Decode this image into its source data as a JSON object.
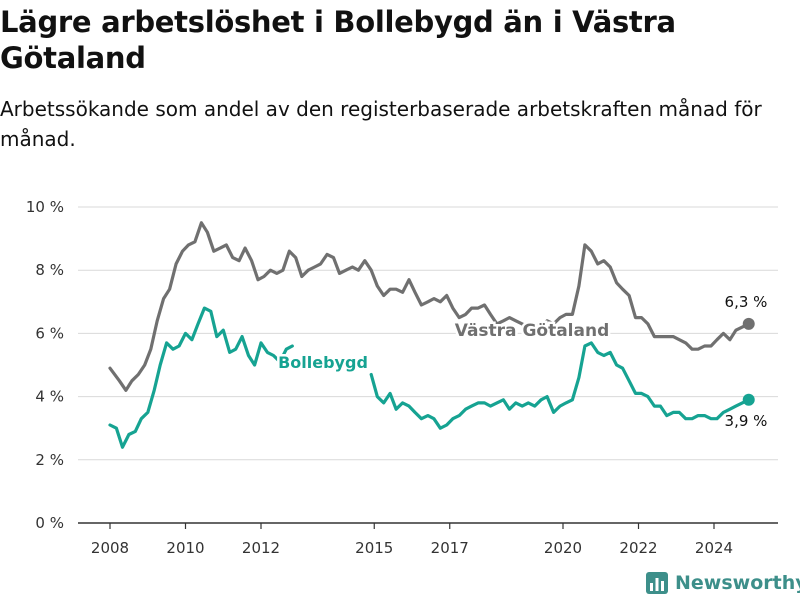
{
  "title": "Lägre arbetslöshet i Bollebygd än i Västra Götaland",
  "subtitle": "Arbetssökande som andel av den registerbaserade arbetskraften månad för månad.",
  "brand": "Newsworthy",
  "colors": {
    "bollebygd": "#16a392",
    "vastra": "#707070",
    "grid": "#d9d9d9",
    "axis": "#333333",
    "brand": "#3d8f8a"
  },
  "chart_data": {
    "type": "line",
    "x_unit": "year",
    "ylim": [
      0,
      10
    ],
    "y_ticks": [
      0,
      2,
      4,
      6,
      8,
      10
    ],
    "y_tick_labels": [
      "0 %",
      "2 %",
      "4 %",
      "6 %",
      "8 %",
      "10 %"
    ],
    "x_ticks": [
      2008,
      2010,
      2012,
      2015,
      2017,
      2020,
      2022,
      2024
    ],
    "x_tick_labels": [
      "2008",
      "2010",
      "2012",
      "2015",
      "2017",
      "2020",
      "2022",
      "2024"
    ],
    "grid": true,
    "series": [
      {
        "name": "Västra Götaland",
        "color": "#707070",
        "end_label": "6,3 %",
        "points": [
          [
            2008.0,
            4.9
          ],
          [
            2008.25,
            4.5
          ],
          [
            2008.42,
            4.2
          ],
          [
            2008.58,
            4.5
          ],
          [
            2008.75,
            4.7
          ],
          [
            2008.92,
            5.0
          ],
          [
            2009.08,
            5.5
          ],
          [
            2009.25,
            6.4
          ],
          [
            2009.42,
            7.1
          ],
          [
            2009.58,
            7.4
          ],
          [
            2009.75,
            8.2
          ],
          [
            2009.92,
            8.6
          ],
          [
            2010.08,
            8.8
          ],
          [
            2010.25,
            8.9
          ],
          [
            2010.42,
            9.5
          ],
          [
            2010.58,
            9.2
          ],
          [
            2010.75,
            8.6
          ],
          [
            2010.92,
            8.7
          ],
          [
            2011.08,
            8.8
          ],
          [
            2011.25,
            8.4
          ],
          [
            2011.42,
            8.3
          ],
          [
            2011.58,
            8.7
          ],
          [
            2011.75,
            8.3
          ],
          [
            2011.92,
            7.7
          ],
          [
            2012.08,
            7.8
          ],
          [
            2012.25,
            8.0
          ],
          [
            2012.42,
            7.9
          ],
          [
            2012.58,
            8.0
          ],
          [
            2012.75,
            8.6
          ],
          [
            2012.92,
            8.4
          ],
          [
            2013.08,
            7.8
          ],
          [
            2013.25,
            8.0
          ],
          [
            2013.42,
            8.1
          ],
          [
            2013.58,
            8.2
          ],
          [
            2013.75,
            8.5
          ],
          [
            2013.92,
            8.4
          ],
          [
            2014.08,
            7.9
          ],
          [
            2014.25,
            8.0
          ],
          [
            2014.42,
            8.1
          ],
          [
            2014.58,
            8.0
          ],
          [
            2014.75,
            8.3
          ],
          [
            2014.92,
            8.0
          ],
          [
            2015.08,
            7.5
          ],
          [
            2015.25,
            7.2
          ],
          [
            2015.42,
            7.4
          ],
          [
            2015.58,
            7.4
          ],
          [
            2015.75,
            7.3
          ],
          [
            2015.92,
            7.7
          ],
          [
            2016.08,
            7.3
          ],
          [
            2016.25,
            6.9
          ],
          [
            2016.42,
            7.0
          ],
          [
            2016.58,
            7.1
          ],
          [
            2016.75,
            7.0
          ],
          [
            2016.92,
            7.2
          ],
          [
            2017.08,
            6.8
          ],
          [
            2017.25,
            6.5
          ],
          [
            2017.42,
            6.6
          ],
          [
            2017.58,
            6.8
          ],
          [
            2017.75,
            6.8
          ],
          [
            2017.92,
            6.9
          ],
          [
            2018.08,
            6.6
          ],
          [
            2018.25,
            6.3
          ],
          [
            2018.42,
            6.4
          ],
          [
            2018.58,
            6.5
          ],
          [
            2018.75,
            6.4
          ],
          [
            2018.92,
            6.3
          ],
          [
            2019.08,
            6.2
          ],
          [
            2019.25,
            6.3
          ],
          [
            2019.42,
            6.2
          ],
          [
            2019.58,
            6.4
          ],
          [
            2019.75,
            6.3
          ],
          [
            2019.92,
            6.5
          ],
          [
            2020.08,
            6.6
          ],
          [
            2020.25,
            6.6
          ],
          [
            2020.42,
            7.5
          ],
          [
            2020.58,
            8.8
          ],
          [
            2020.75,
            8.6
          ],
          [
            2020.92,
            8.2
          ],
          [
            2021.08,
            8.3
          ],
          [
            2021.25,
            8.1
          ],
          [
            2021.42,
            7.6
          ],
          [
            2021.58,
            7.4
          ],
          [
            2021.75,
            7.2
          ],
          [
            2021.92,
            6.5
          ],
          [
            2022.08,
            6.5
          ],
          [
            2022.25,
            6.3
          ],
          [
            2022.42,
            5.9
          ],
          [
            2022.58,
            5.9
          ],
          [
            2022.75,
            5.9
          ],
          [
            2022.92,
            5.9
          ],
          [
            2023.08,
            5.8
          ],
          [
            2023.25,
            5.7
          ],
          [
            2023.42,
            5.5
          ],
          [
            2023.58,
            5.5
          ],
          [
            2023.75,
            5.6
          ],
          [
            2023.92,
            5.6
          ],
          [
            2024.08,
            5.8
          ],
          [
            2024.25,
            6.0
          ],
          [
            2024.42,
            5.8
          ],
          [
            2024.58,
            6.1
          ],
          [
            2024.75,
            6.2
          ],
          [
            2024.92,
            6.3
          ]
        ]
      },
      {
        "name": "Bollebygd",
        "color": "#16a392",
        "end_label": "3,9 %",
        "points": [
          [
            2008.0,
            3.1
          ],
          [
            2008.17,
            3.0
          ],
          [
            2008.33,
            2.4
          ],
          [
            2008.5,
            2.8
          ],
          [
            2008.67,
            2.9
          ],
          [
            2008.83,
            3.3
          ],
          [
            2009.0,
            3.5
          ],
          [
            2009.17,
            4.2
          ],
          [
            2009.33,
            5.0
          ],
          [
            2009.5,
            5.7
          ],
          [
            2009.67,
            5.5
          ],
          [
            2009.83,
            5.6
          ],
          [
            2010.0,
            6.0
          ],
          [
            2010.17,
            5.8
          ],
          [
            2010.33,
            6.3
          ],
          [
            2010.5,
            6.8
          ],
          [
            2010.67,
            6.7
          ],
          [
            2010.83,
            5.9
          ],
          [
            2011.0,
            6.1
          ],
          [
            2011.17,
            5.4
          ],
          [
            2011.33,
            5.5
          ],
          [
            2011.5,
            5.9
          ],
          [
            2011.67,
            5.3
          ],
          [
            2011.83,
            5.0
          ],
          [
            2012.0,
            5.7
          ],
          [
            2012.17,
            5.4
          ],
          [
            2012.33,
            5.3
          ],
          [
            2012.5,
            5.1
          ],
          [
            2012.67,
            5.5
          ],
          [
            2012.83,
            5.6
          ],
          [
            2014.92,
            4.7
          ],
          [
            2015.08,
            4.0
          ],
          [
            2015.25,
            3.8
          ],
          [
            2015.42,
            4.1
          ],
          [
            2015.58,
            3.6
          ],
          [
            2015.75,
            3.8
          ],
          [
            2015.92,
            3.7
          ],
          [
            2016.08,
            3.5
          ],
          [
            2016.25,
            3.3
          ],
          [
            2016.42,
            3.4
          ],
          [
            2016.58,
            3.3
          ],
          [
            2016.75,
            3.0
          ],
          [
            2016.92,
            3.1
          ],
          [
            2017.08,
            3.3
          ],
          [
            2017.25,
            3.4
          ],
          [
            2017.42,
            3.6
          ],
          [
            2017.58,
            3.7
          ],
          [
            2017.75,
            3.8
          ],
          [
            2017.92,
            3.8
          ],
          [
            2018.08,
            3.7
          ],
          [
            2018.25,
            3.8
          ],
          [
            2018.42,
            3.9
          ],
          [
            2018.58,
            3.6
          ],
          [
            2018.75,
            3.8
          ],
          [
            2018.92,
            3.7
          ],
          [
            2019.08,
            3.8
          ],
          [
            2019.25,
            3.7
          ],
          [
            2019.42,
            3.9
          ],
          [
            2019.58,
            4.0
          ],
          [
            2019.75,
            3.5
          ],
          [
            2019.92,
            3.7
          ],
          [
            2020.08,
            3.8
          ],
          [
            2020.25,
            3.9
          ],
          [
            2020.42,
            4.6
          ],
          [
            2020.58,
            5.6
          ],
          [
            2020.75,
            5.7
          ],
          [
            2020.92,
            5.4
          ],
          [
            2021.08,
            5.3
          ],
          [
            2021.25,
            5.4
          ],
          [
            2021.42,
            5.0
          ],
          [
            2021.58,
            4.9
          ],
          [
            2021.75,
            4.5
          ],
          [
            2021.92,
            4.1
          ],
          [
            2022.08,
            4.1
          ],
          [
            2022.25,
            4.0
          ],
          [
            2022.42,
            3.7
          ],
          [
            2022.58,
            3.7
          ],
          [
            2022.75,
            3.4
          ],
          [
            2022.92,
            3.5
          ],
          [
            2023.08,
            3.5
          ],
          [
            2023.25,
            3.3
          ],
          [
            2023.42,
            3.3
          ],
          [
            2023.58,
            3.4
          ],
          [
            2023.75,
            3.4
          ],
          [
            2023.92,
            3.3
          ],
          [
            2024.08,
            3.3
          ],
          [
            2024.25,
            3.5
          ],
          [
            2024.42,
            3.6
          ],
          [
            2024.58,
            3.7
          ],
          [
            2024.75,
            3.8
          ],
          [
            2024.92,
            3.9
          ]
        ]
      }
    ]
  }
}
